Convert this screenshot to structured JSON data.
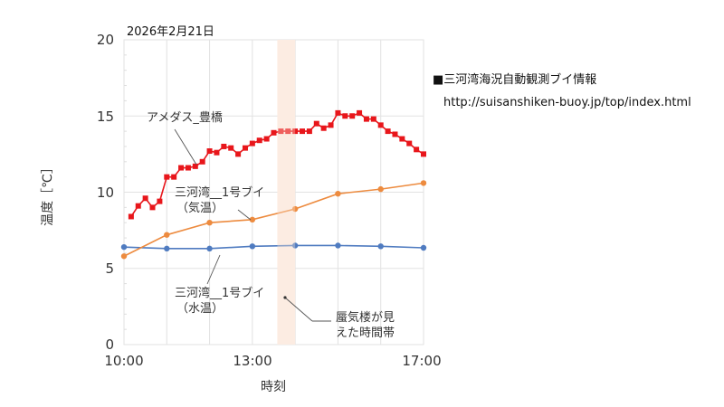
{
  "header": {
    "date": "2026年2月21日",
    "info_title": "■三河湾海況自動観測ブイ情報",
    "info_url": "http://suisanshiken-buoy.jp/top/index.html"
  },
  "colors": {
    "amedas": "#e8161b",
    "air_temp": "#ed8b3f",
    "water_temp": "#4f7bc0",
    "highlight_band": "#fcefe6",
    "grid": "#e2e2e2"
  },
  "annotations": {
    "amedas": "アメダス_豊橋",
    "air_line1": "三河湾__1号ブイ",
    "air_line2": "（気温）",
    "water_line1": "三河湾__1号ブイ",
    "water_line2": "（水温）",
    "mirage_line1": "蜃気楼が見",
    "mirage_line2": "えた時間帯"
  },
  "axes": {
    "ylabel": "温度［℃］",
    "xlabel": "時刻",
    "yticks": [
      "0",
      "5",
      "10",
      "15",
      "20"
    ],
    "xticks": [
      "10:00",
      "13:00",
      "17:00"
    ]
  },
  "chart_data": {
    "type": "line",
    "title": "2026年2月21日",
    "xlabel": "時刻",
    "ylabel": "温度［℃］",
    "xlim": [
      "10:00",
      "17:00"
    ],
    "ylim": [
      0,
      20
    ],
    "grid": true,
    "highlight_band": {
      "start": "13:35",
      "end": "14:00",
      "label": "蜃気楼が見えた時間帯"
    },
    "series": [
      {
        "name": "アメダス_豊橋",
        "marker": "square",
        "x": [
          "10:10",
          "10:20",
          "10:30",
          "10:40",
          "10:50",
          "11:00",
          "11:10",
          "11:20",
          "11:30",
          "11:40",
          "11:50",
          "12:00",
          "12:10",
          "12:20",
          "12:30",
          "12:40",
          "12:50",
          "13:00",
          "13:10",
          "13:20",
          "13:30",
          "13:40",
          "13:50",
          "14:00",
          "14:10",
          "14:20",
          "14:30",
          "14:40",
          "14:50",
          "15:00",
          "15:10",
          "15:20",
          "15:30",
          "15:40",
          "15:50",
          "16:00",
          "16:10",
          "16:20",
          "16:30",
          "16:40",
          "16:50",
          "17:00"
        ],
        "values": [
          8.4,
          9.1,
          9.6,
          9.0,
          9.4,
          11.0,
          11.0,
          11.6,
          11.6,
          11.7,
          12.0,
          12.7,
          12.6,
          13.0,
          12.9,
          12.5,
          12.9,
          13.2,
          13.4,
          13.5,
          13.9,
          14.0,
          14.0,
          14.0,
          14.0,
          14.0,
          14.5,
          14.2,
          14.4,
          15.2,
          15.0,
          15.0,
          15.2,
          14.8,
          14.8,
          14.4,
          14.0,
          13.8,
          13.5,
          13.2,
          12.8,
          12.5
        ]
      },
      {
        "name": "三河湾__1号ブイ（気温）",
        "marker": "circle",
        "x": [
          "10:00",
          "11:00",
          "12:00",
          "13:00",
          "14:00",
          "15:00",
          "16:00",
          "17:00"
        ],
        "values": [
          5.8,
          7.2,
          8.0,
          8.2,
          8.9,
          9.9,
          10.2,
          10.6
        ]
      },
      {
        "name": "三河湾__1号ブイ（水温）",
        "marker": "circle",
        "x": [
          "10:00",
          "11:00",
          "12:00",
          "13:00",
          "14:00",
          "15:00",
          "16:00",
          "17:00"
        ],
        "values": [
          6.4,
          6.3,
          6.3,
          6.45,
          6.5,
          6.5,
          6.45,
          6.35
        ]
      }
    ]
  }
}
